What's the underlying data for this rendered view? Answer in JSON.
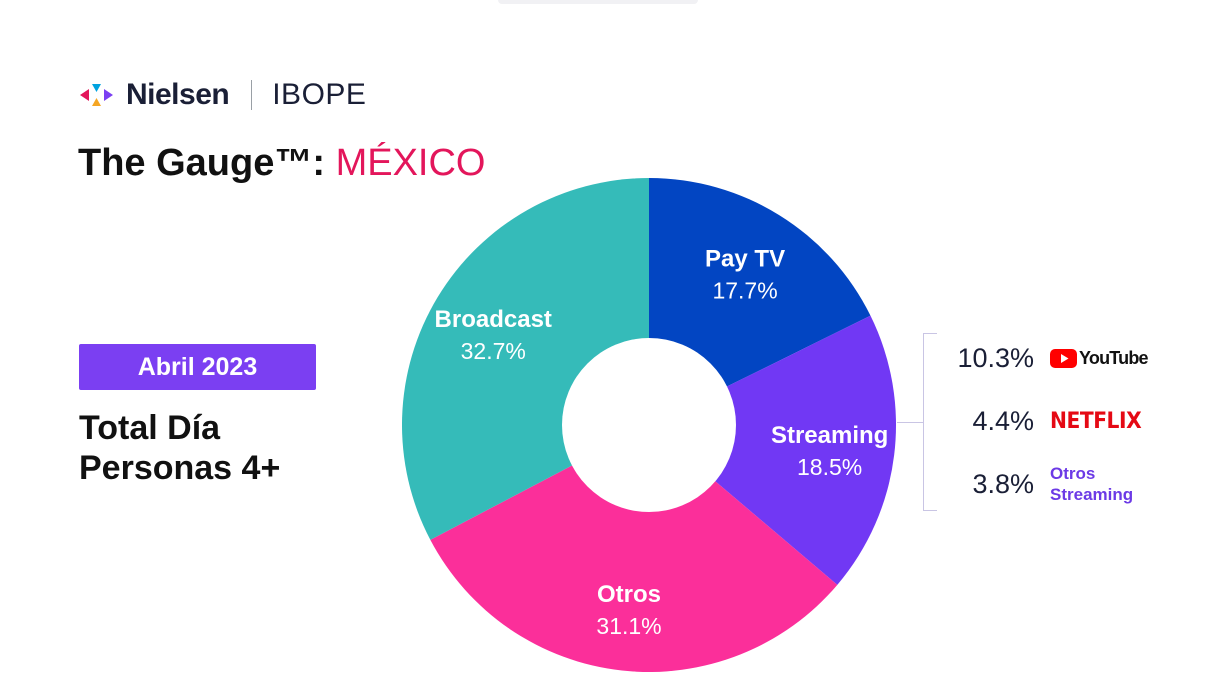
{
  "brand": {
    "name": "Nielsen",
    "partner": "IBOPE",
    "mark_colors": [
      "#e3165b",
      "#00a3e0",
      "#7b3ff2",
      "#f5a623"
    ]
  },
  "header": {
    "title_main": "The Gauge™: ",
    "title_accent": "MÉXICO"
  },
  "period": {
    "label": "Abril 2023"
  },
  "audience": {
    "line1": "Total Día",
    "line2": "Personas 4+"
  },
  "colors": {
    "accent_pink": "#e3165b",
    "badge_purple": "#7b3ff2"
  },
  "chart_data": {
    "type": "pie",
    "title": "",
    "donut": true,
    "slices": [
      {
        "name": "Pay TV",
        "value": 17.7,
        "label": "17.7%",
        "color": "#0245c2"
      },
      {
        "name": "Streaming",
        "value": 18.5,
        "label": "18.5%",
        "color": "#7138f4"
      },
      {
        "name": "Otros",
        "value": 31.1,
        "label": "31.1%",
        "color": "#fb2f9a"
      },
      {
        "name": "Broadcast",
        "value": 32.7,
        "label": "32.7%",
        "color": "#35bbb9"
      }
    ],
    "streaming_breakdown": [
      {
        "name": "YouTube",
        "value": 10.3,
        "label": "10.3%"
      },
      {
        "name": "NETFLIX",
        "value": 4.4,
        "label": "4.4%"
      },
      {
        "name": "Otros Streaming",
        "value": 3.8,
        "label": "3.8%"
      }
    ]
  }
}
